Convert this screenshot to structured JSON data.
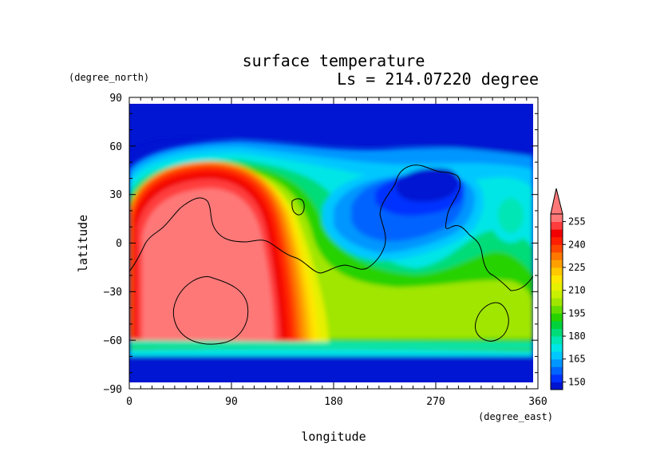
{
  "chart_data": {
    "type": "heatmap",
    "title": "surface temperature",
    "subtitle": "Ls = 214.07220 degree",
    "xlabel": "longitude",
    "ylabel": "latitude",
    "xunit": "(degree_east)",
    "yunit": "(degree_north)",
    "xlim": [
      0,
      360
    ],
    "ylim": [
      -90,
      90
    ],
    "data_lat_extent": [
      -85,
      85
    ],
    "xticks": [
      "0",
      "90",
      "180",
      "270",
      "360"
    ],
    "yticks": [
      "90",
      "60",
      "30",
      "0",
      "−30",
      "−60",
      "−90"
    ],
    "xtick_values": [
      0,
      90,
      180,
      270,
      360
    ],
    "ytick_values": [
      90,
      60,
      30,
      0,
      -30,
      -60,
      -90
    ],
    "colorbar": {
      "levels": [
        145,
        150,
        155,
        160,
        165,
        170,
        175,
        180,
        185,
        190,
        195,
        200,
        205,
        210,
        215,
        220,
        225,
        230,
        235,
        240,
        245,
        250,
        255,
        260
      ],
      "labels": [
        "150",
        "165",
        "180",
        "195",
        "210",
        "225",
        "240",
        "255"
      ],
      "label_values": [
        150,
        165,
        180,
        195,
        210,
        225,
        240,
        255
      ],
      "colors": [
        "#0014d2",
        "#0032ff",
        "#0064ff",
        "#0096ff",
        "#00c8ff",
        "#00e6e6",
        "#00e6b4",
        "#00dc78",
        "#00d23c",
        "#28d200",
        "#64dc00",
        "#a0e600",
        "#c8f000",
        "#e6f000",
        "#ffe600",
        "#ffc800",
        "#ffa000",
        "#ff7800",
        "#ff4600",
        "#ff1e00",
        "#f00000",
        "#ff3c3c",
        "#ff7878"
      ],
      "extend_max": true
    },
    "grid": false
  }
}
